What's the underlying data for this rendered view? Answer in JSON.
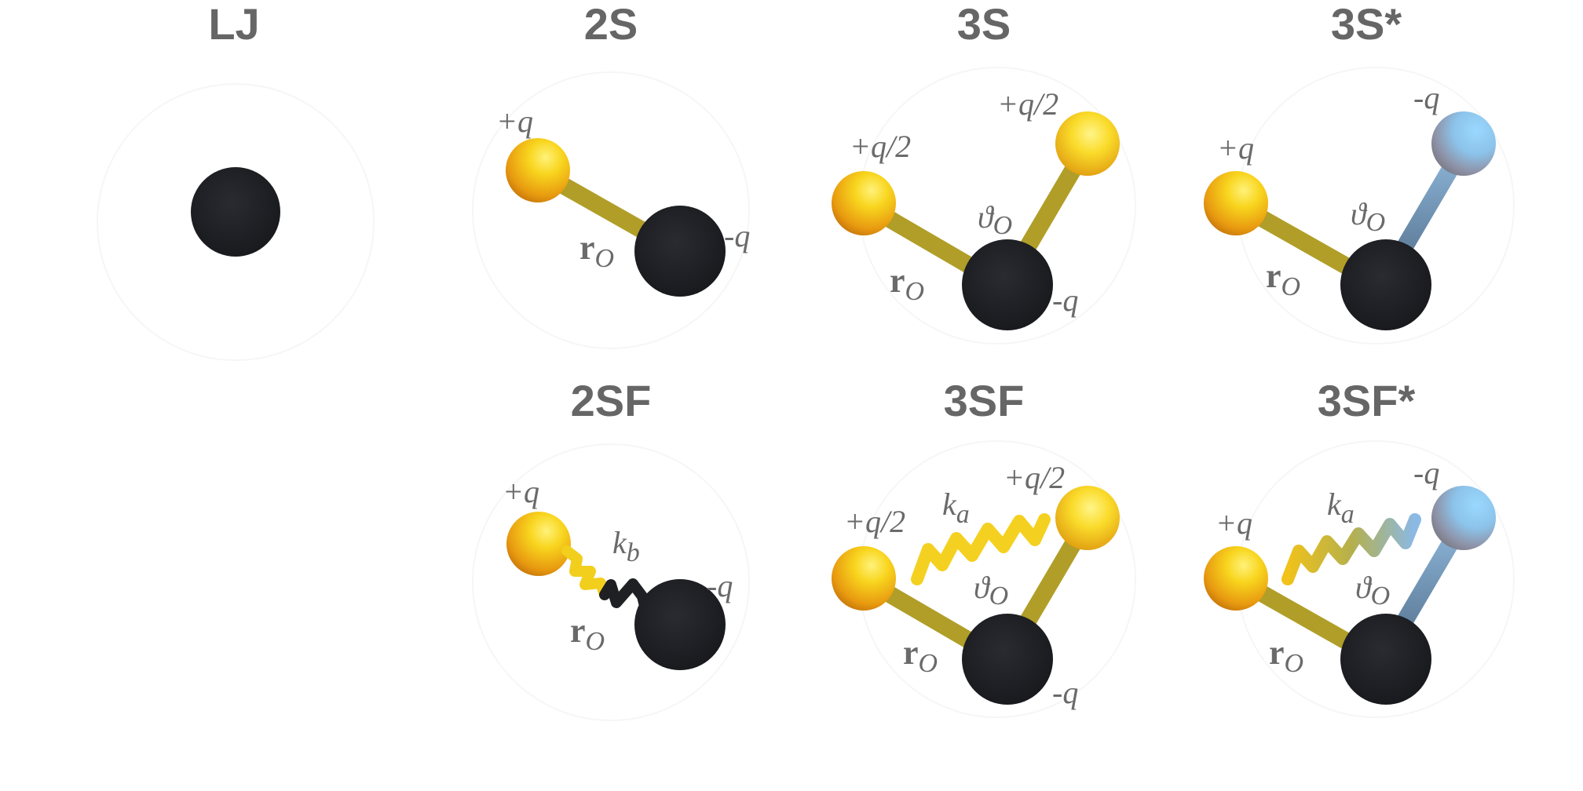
{
  "figure": {
    "panels": [
      {
        "id": "lj",
        "title": "LJ"
      },
      {
        "id": "2s",
        "title": "2S",
        "labels": {
          "plus": "+q",
          "minus": "-q",
          "r": "r",
          "r_sub": "O"
        }
      },
      {
        "id": "3s",
        "title": "3S",
        "labels": {
          "plus_left": "+q/2",
          "plus_right": "+q/2",
          "minus": "-q",
          "theta": "ϑ",
          "theta_sub": "O",
          "r": "r",
          "r_sub": "O"
        }
      },
      {
        "id": "3s-star",
        "title": "3S*",
        "labels": {
          "plus": "+q",
          "minus_top": "-q",
          "theta": "ϑ",
          "theta_sub": "O",
          "r": "r",
          "r_sub": "O"
        }
      },
      {
        "id": "2sf",
        "title": "2SF",
        "labels": {
          "plus": "+q",
          "minus": "-q",
          "k": "k",
          "k_sub": "b",
          "r": "r",
          "r_sub": "O"
        }
      },
      {
        "id": "3sf",
        "title": "3SF",
        "labels": {
          "plus_left": "+q/2",
          "plus_right": "+q/2",
          "minus": "-q",
          "k": "k",
          "k_sub": "a",
          "theta": "ϑ",
          "theta_sub": "O",
          "r": "r",
          "r_sub": "O"
        }
      },
      {
        "id": "3sf-star",
        "title": "3SF*",
        "labels": {
          "plus": "+q",
          "minus_top": "-q",
          "k": "k",
          "k_sub": "a",
          "theta": "ϑ",
          "theta_sub": "O",
          "r": "r",
          "r_sub": "O"
        }
      }
    ],
    "colors": {
      "title": "#666666",
      "label": "#6a6a6a",
      "oxygen": "#1f2024",
      "positive_charge": "#f5c518",
      "negative_charge": "#7fc6f0",
      "bond_gold": "#b3a127",
      "bond_blue": "#6f8fae"
    }
  }
}
